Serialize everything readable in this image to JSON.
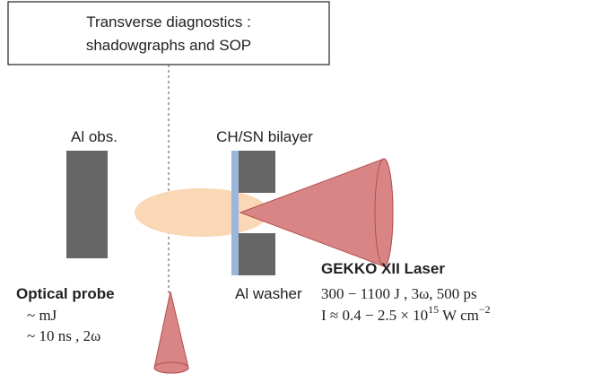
{
  "header": {
    "lines": [
      "Transverse diagnostics :",
      "shadowgraphs and SOP"
    ]
  },
  "labels": {
    "obstacle": "Al obs.",
    "bilayer": "CH/SN bilayer",
    "washer": "Al washer"
  },
  "laser": {
    "title": "GEKKO XII Laser",
    "line1": "300 − 1100 J , 3ω, 500 ps",
    "line2": {
      "base": "I  ≈ 0.4 − 2.5  × 10",
      "exp1": "15",
      "unit": " W cm",
      "exp2": "−2"
    }
  },
  "probe": {
    "title": "Optical probe",
    "lines": [
      "~ mJ",
      "~ 10 ns , 2ω"
    ]
  }
}
